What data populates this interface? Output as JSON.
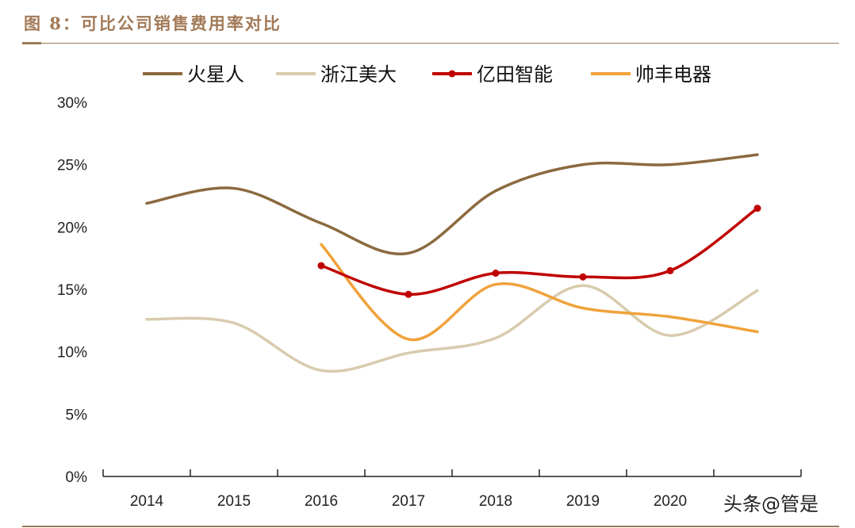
{
  "title": "图 8：可比公司销售费用率对比",
  "watermark": "头条@管是",
  "chart_data": {
    "type": "line",
    "title": "图 8：可比公司销售费用率对比",
    "categories": [
      "2014",
      "2015",
      "2016",
      "2017",
      "2018",
      "2019",
      "2020",
      ""
    ],
    "ylim": [
      0,
      30
    ],
    "yticks": [
      "0%",
      "5%",
      "10%",
      "15%",
      "20%",
      "25%",
      "30%"
    ],
    "grid": false,
    "legend": "top",
    "smooth": true,
    "series": [
      {
        "name": "火星人",
        "color": "#8B6A3F",
        "markers": false,
        "values": [
          21.9,
          23.1,
          20.3,
          17.9,
          22.9,
          25.0,
          25.0,
          25.8
        ]
      },
      {
        "name": "浙江美大",
        "color": "#D8CCAE",
        "markers": false,
        "values": [
          12.6,
          12.3,
          8.5,
          9.9,
          11.1,
          15.3,
          11.3,
          14.9
        ]
      },
      {
        "name": "亿田智能",
        "color": "#C00000",
        "markers": true,
        "values": [
          null,
          null,
          16.9,
          14.6,
          16.3,
          16.0,
          16.5,
          21.5
        ]
      },
      {
        "name": "帅丰电器",
        "color": "#F0A23A",
        "markers": false,
        "values": [
          null,
          null,
          18.6,
          11.0,
          15.4,
          13.5,
          12.8,
          11.6
        ]
      }
    ]
  }
}
